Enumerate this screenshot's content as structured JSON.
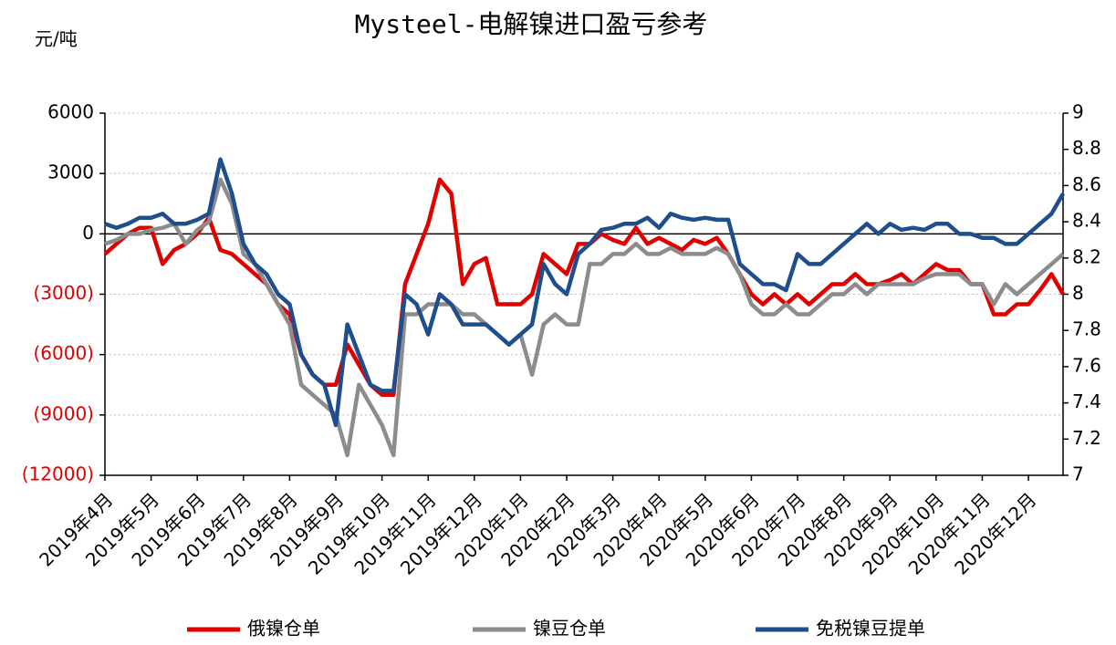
{
  "chart_data": {
    "type": "line",
    "title": "Mysteel-电解镍进口盈亏参考",
    "y_label": "元/吨",
    "categories": [
      "2019年4月",
      null,
      null,
      null,
      "2019年5月",
      null,
      null,
      null,
      "2019年6月",
      null,
      null,
      null,
      "2019年7月",
      null,
      null,
      null,
      "2019年8月",
      null,
      null,
      null,
      "2019年9月",
      null,
      null,
      null,
      "2019年10月",
      null,
      null,
      null,
      "2019年11月",
      null,
      null,
      null,
      "2019年12月",
      null,
      null,
      null,
      "2020年1月",
      null,
      null,
      null,
      "2020年2月",
      null,
      null,
      null,
      "2020年3月",
      null,
      null,
      null,
      "2020年4月",
      null,
      null,
      null,
      "2020年5月",
      null,
      null,
      null,
      "2020年6月",
      null,
      null,
      null,
      "2020年7月",
      null,
      null,
      null,
      "2020年8月",
      null,
      null,
      null,
      "2020年9月",
      null,
      null,
      null,
      "2020年10月",
      null,
      null,
      null,
      "2020年11月",
      null,
      null,
      null,
      "2020年12月",
      null,
      null,
      null
    ],
    "series": [
      {
        "name": "俄镍仓单",
        "color": "#e00000",
        "values": [
          -1000,
          -500,
          0,
          300,
          300,
          -1500,
          -800,
          -500,
          0,
          800,
          -800,
          -1000,
          -1500,
          -2000,
          -2500,
          -3500,
          -4000,
          -6000,
          -7000,
          -7500,
          -7500,
          -5500,
          -6500,
          -7500,
          -8000,
          -8000,
          -2500,
          -1000,
          500,
          2700,
          2000,
          -2500,
          -1500,
          -1200,
          -3500,
          -3500,
          -3500,
          -3000,
          -1000,
          -1500,
          -2000,
          -500,
          -500,
          0,
          -300,
          -500,
          300,
          -500,
          -200,
          -500,
          -800,
          -300,
          -500,
          -200,
          -1000,
          -2000,
          -3000,
          -3500,
          -3000,
          -3500,
          -3000,
          -3500,
          -3000,
          -2500,
          -2500,
          -2000,
          -2500,
          -2500,
          -2300,
          -2000,
          -2500,
          -2000,
          -1500,
          -1800,
          -1800,
          -2500,
          -2500,
          -4000,
          -4000,
          -3500,
          -3500,
          -2800,
          -2000,
          -3000
        ]
      },
      {
        "name": "镍豆仓单",
        "color": "#8c8c8c",
        "values": [
          -500,
          -300,
          0,
          0,
          200,
          300,
          500,
          -500,
          200,
          600,
          2700,
          1500,
          -1000,
          -1500,
          -2500,
          -3500,
          -4500,
          -7500,
          -8000,
          -8500,
          -9000,
          -11000,
          -7500,
          -8500,
          -9500,
          -11000,
          -4000,
          -4000,
          -3500,
          -3500,
          -3500,
          -4000,
          -4000,
          -4500,
          -5000,
          -5500,
          -5000,
          -7000,
          -4500,
          -4000,
          -4500,
          -4500,
          -1500,
          -1500,
          -1000,
          -1000,
          -500,
          -1000,
          -1000,
          -700,
          -1000,
          -1000,
          -1000,
          -700,
          -1000,
          -2000,
          -3500,
          -4000,
          -4000,
          -3500,
          -4000,
          -4000,
          -3500,
          -3000,
          -3000,
          -2500,
          -3000,
          -2500,
          -2500,
          -2500,
          -2500,
          -2200,
          -2000,
          -2000,
          -2000,
          -2500,
          -2500,
          -3500,
          -2500,
          -3000,
          -2500,
          -2000,
          -1500,
          -1000
        ]
      },
      {
        "name": "免税镍豆提单",
        "color": "#1f4e8c",
        "values": [
          500,
          300,
          500,
          800,
          800,
          1000,
          500,
          500,
          700,
          1000,
          3700,
          2000,
          -500,
          -1500,
          -2000,
          -3000,
          -3500,
          -6000,
          -7000,
          -7500,
          -9500,
          -4500,
          -6000,
          -7500,
          -7800,
          -7800,
          -3000,
          -3500,
          -5000,
          -3000,
          -3500,
          -4500,
          -4500,
          -4500,
          -5000,
          -5500,
          -5000,
          -4500,
          -1500,
          -2500,
          -3000,
          -1000,
          -500,
          200,
          300,
          500,
          500,
          800,
          300,
          1000,
          800,
          700,
          800,
          700,
          700,
          -1500,
          -2000,
          -2500,
          -2500,
          -2800,
          -1000,
          -1500,
          -1500,
          -1000,
          -500,
          0,
          500,
          0,
          500,
          200,
          300,
          200,
          500,
          500,
          0,
          0,
          -200,
          -200,
          -500,
          -500,
          0,
          500,
          1000,
          2000
        ]
      }
    ],
    "ylim": [
      -12000,
      6000
    ],
    "yticks": [
      {
        "value": -12000,
        "label": "(12000)"
      },
      {
        "value": -9000,
        "label": "(9000)"
      },
      {
        "value": -6000,
        "label": "(6000)"
      },
      {
        "value": -3000,
        "label": "(3000)"
      },
      0,
      3000,
      6000
    ],
    "y2lim": [
      7,
      9
    ],
    "y2ticks": [
      7,
      7.2,
      7.4,
      7.6,
      7.8,
      8,
      8.2,
      8.4,
      8.6,
      8.8,
      9
    ],
    "grid": true
  }
}
